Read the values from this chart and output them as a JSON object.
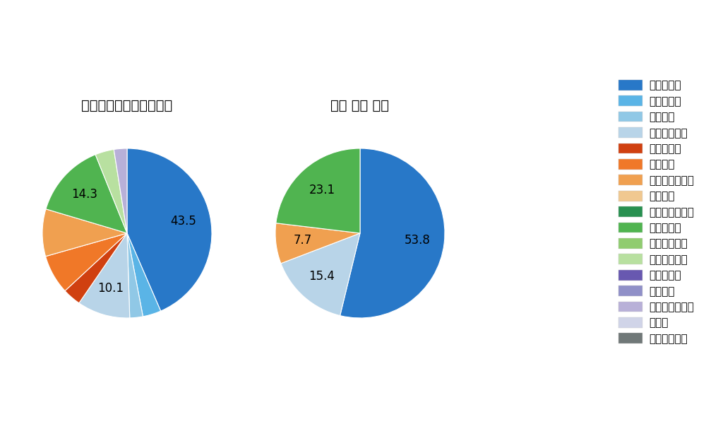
{
  "left_title": "セ・リーグ全プレイヤー",
  "right_title": "石川 雅規 選手",
  "pitch_types": [
    "ストレート",
    "ツーシーム",
    "シュート",
    "カットボール",
    "スプリット",
    "フォーク",
    "チェンジアップ",
    "シンカー",
    "高速スライダー",
    "スライダー",
    "縦スライダー",
    "パワーカーブ",
    "スクリュー",
    "ナックル",
    "ナックルカーブ",
    "カーブ",
    "スローカーブ"
  ],
  "colors": [
    "#2878c8",
    "#5ab4e6",
    "#90c8e6",
    "#b8d4e8",
    "#d04010",
    "#f07828",
    "#f0a050",
    "#f0c890",
    "#289050",
    "#50b450",
    "#90cc70",
    "#b8e0a0",
    "#6858b0",
    "#9090c8",
    "#b8b0d8",
    "#d0d4e8",
    "#707878"
  ],
  "left_slices": [
    {
      "pitch": "ストレート",
      "value": 43.5,
      "color": "#2878c8",
      "label": "43.5"
    },
    {
      "pitch": "ツーシーム",
      "value": 3.5,
      "color": "#5ab4e6",
      "label": ""
    },
    {
      "pitch": "シュート",
      "value": 2.5,
      "color": "#90c8e6",
      "label": ""
    },
    {
      "pitch": "カットボール",
      "value": 10.1,
      "color": "#b8d4e8",
      "label": "10.1"
    },
    {
      "pitch": "スプリット",
      "value": 3.5,
      "color": "#d04010",
      "label": ""
    },
    {
      "pitch": "フォーク",
      "value": 7.5,
      "color": "#f07828",
      "label": ""
    },
    {
      "pitch": "チェンジアップ",
      "value": 9.0,
      "color": "#f0a050",
      "label": ""
    },
    {
      "pitch": "スライダー",
      "value": 14.3,
      "color": "#50b450",
      "label": "14.3"
    },
    {
      "pitch": "パワーカーブ",
      "value": 3.6,
      "color": "#b8e0a0",
      "label": ""
    },
    {
      "pitch": "ナックルカーブ",
      "value": 2.5,
      "color": "#b8b0d8",
      "label": ""
    }
  ],
  "right_slices": [
    {
      "pitch": "ストレート",
      "value": 53.8,
      "color": "#2878c8",
      "label": "53.8"
    },
    {
      "pitch": "カットボール",
      "value": 15.4,
      "color": "#b8d4e8",
      "label": "15.4"
    },
    {
      "pitch": "チェンジアップ",
      "value": 7.7,
      "color": "#f0a050",
      "label": "7.7"
    },
    {
      "pitch": "スライダー",
      "value": 23.1,
      "color": "#50b450",
      "label": "23.1"
    }
  ],
  "background_color": "#ffffff",
  "label_fontsize": 12,
  "title_fontsize": 14,
  "legend_fontsize": 11
}
